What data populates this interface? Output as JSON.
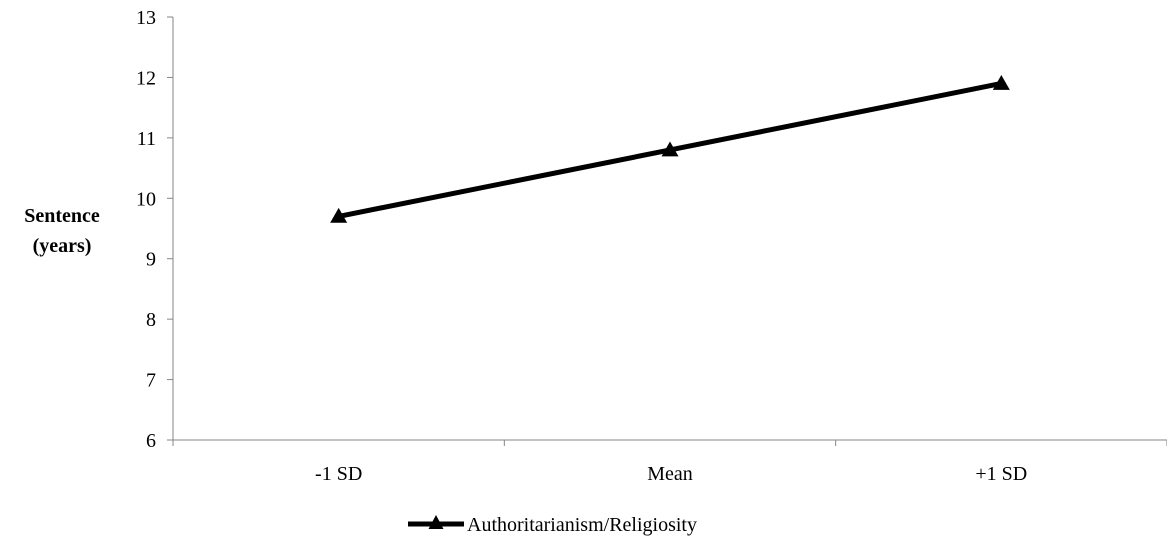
{
  "chart_data": {
    "type": "line",
    "categories": [
      "-1 SD",
      "Mean",
      "+1 SD"
    ],
    "series": [
      {
        "name": "Authoritarianism/Religiosity",
        "values": [
          9.7,
          10.8,
          11.9
        ],
        "marker": "triangle",
        "color": "#000000"
      }
    ],
    "ylabel_lines": [
      "Sentence",
      "(years)"
    ],
    "ylim": [
      6,
      13
    ],
    "yticks": [
      6,
      7,
      8,
      9,
      10,
      11,
      12,
      13
    ],
    "grid": false,
    "legend": "bottom"
  }
}
